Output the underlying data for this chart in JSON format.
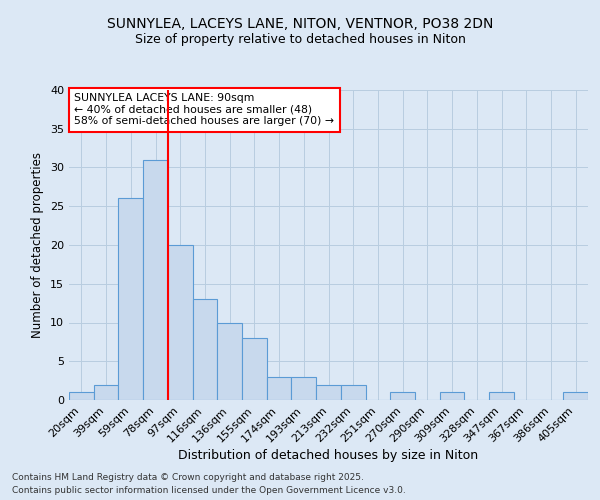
{
  "title1": "SUNNYLEA, LACEYS LANE, NITON, VENTNOR, PO38 2DN",
  "title2": "Size of property relative to detached houses in Niton",
  "xlabel": "Distribution of detached houses by size in Niton",
  "ylabel": "Number of detached properties",
  "bins": [
    "20sqm",
    "39sqm",
    "59sqm",
    "78sqm",
    "97sqm",
    "116sqm",
    "136sqm",
    "155sqm",
    "174sqm",
    "193sqm",
    "213sqm",
    "232sqm",
    "251sqm",
    "270sqm",
    "290sqm",
    "309sqm",
    "328sqm",
    "347sqm",
    "367sqm",
    "386sqm",
    "405sqm"
  ],
  "values": [
    1,
    2,
    26,
    31,
    20,
    13,
    10,
    8,
    3,
    3,
    2,
    2,
    0,
    1,
    0,
    1,
    0,
    1,
    0,
    0,
    1
  ],
  "bar_color": "#c8d9ed",
  "bar_edge_color": "#5b9bd5",
  "red_line_x": 4.0,
  "annotation_text": "SUNNYLEA LACEYS LANE: 90sqm\n← 40% of detached houses are smaller (48)\n58% of semi-detached houses are larger (70) →",
  "annotation_box_color": "white",
  "annotation_box_edge": "red",
  "ylim": [
    0,
    40
  ],
  "yticks": [
    0,
    5,
    10,
    15,
    20,
    25,
    30,
    35,
    40
  ],
  "footer": "Contains HM Land Registry data © Crown copyright and database right 2025.\nContains public sector information licensed under the Open Government Licence v3.0.",
  "bg_color": "#dce8f5",
  "plot_bg_color": "#dce8f5",
  "grid_color": "#b8cde0",
  "title1_fontsize": 10,
  "title2_fontsize": 9
}
